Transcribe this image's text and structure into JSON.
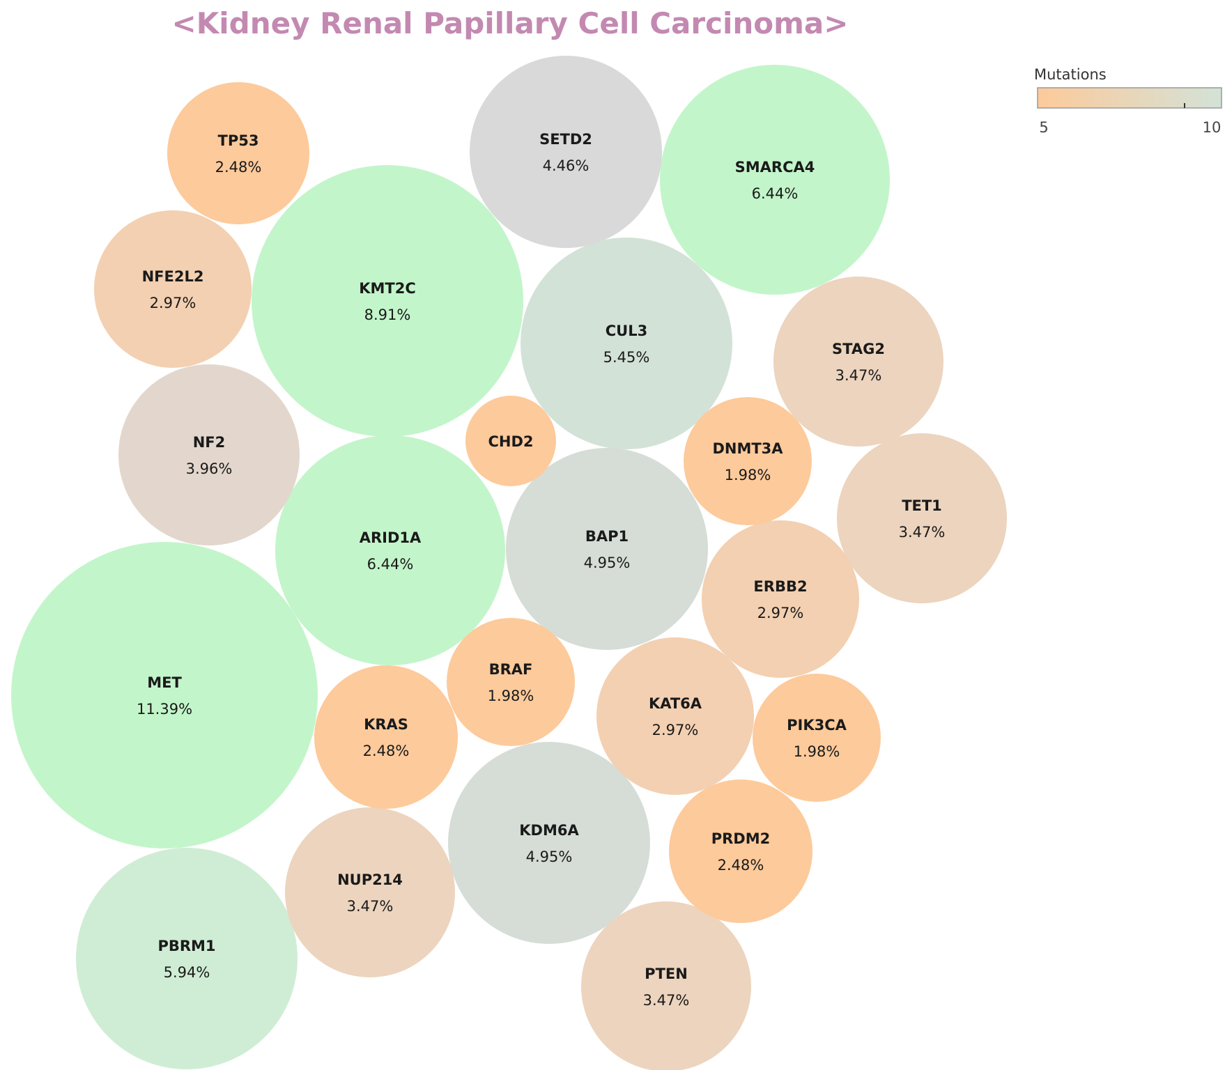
{
  "chart_data": {
    "type": "bubble",
    "title": "<Kidney Renal Papillary Cell Carcinoma>",
    "title_color": "#c389b1",
    "colorbar": {
      "title": "Mutations",
      "ticks": [
        "5",
        "10"
      ],
      "color_low": "#fdca9b",
      "color_high": "#d3e2d7",
      "color_out_of_range": "#c3f5ca"
    },
    "bubbles": [
      {
        "gene": "MET",
        "percent": 11.39,
        "label": "11.39%",
        "color": "#c3f5ca"
      },
      {
        "gene": "KMT2C",
        "percent": 8.91,
        "label": "8.91%",
        "color": "#c3f5ca"
      },
      {
        "gene": "SMARCA4",
        "percent": 6.44,
        "label": "6.44%",
        "color": "#c3f5ca"
      },
      {
        "gene": "ARID1A",
        "percent": 6.44,
        "label": "6.44%",
        "color": "#c3f5ca"
      },
      {
        "gene": "PBRM1",
        "percent": 5.94,
        "label": "5.94%",
        "color": "#cfedd4"
      },
      {
        "gene": "CUL3",
        "percent": 5.45,
        "label": "5.45%",
        "color": "#d3e2d7"
      },
      {
        "gene": "BAP1",
        "percent": 4.95,
        "label": "4.95%",
        "color": "#d5ddd6"
      },
      {
        "gene": "KDM6A",
        "percent": 4.95,
        "label": "4.95%",
        "color": "#d5ddd6"
      },
      {
        "gene": "SETD2",
        "percent": 4.46,
        "label": "4.46%",
        "color": "#d9d9d9"
      },
      {
        "gene": "NF2",
        "percent": 3.96,
        "label": "3.96%",
        "color": "#e3d7cd"
      },
      {
        "gene": "STAG2",
        "percent": 3.47,
        "label": "3.47%",
        "color": "#ecd4be"
      },
      {
        "gene": "TET1",
        "percent": 3.47,
        "label": "3.47%",
        "color": "#ecd4be"
      },
      {
        "gene": "NUP214",
        "percent": 3.47,
        "label": "3.47%",
        "color": "#ecd4be"
      },
      {
        "gene": "PTEN",
        "percent": 3.47,
        "label": "3.47%",
        "color": "#ecd4be"
      },
      {
        "gene": "NFE2L2",
        "percent": 2.97,
        "label": "2.97%",
        "color": "#f3d0b1"
      },
      {
        "gene": "ERBB2",
        "percent": 2.97,
        "label": "2.97%",
        "color": "#f3d0b1"
      },
      {
        "gene": "KAT6A",
        "percent": 2.97,
        "label": "2.97%",
        "color": "#f3d0b1"
      },
      {
        "gene": "TP53",
        "percent": 2.48,
        "label": "2.48%",
        "color": "#fdca9b"
      },
      {
        "gene": "KRAS",
        "percent": 2.48,
        "label": "2.48%",
        "color": "#fdca9b"
      },
      {
        "gene": "PRDM2",
        "percent": 2.48,
        "label": "2.48%",
        "color": "#fdca9b"
      },
      {
        "gene": "DNMT3A",
        "percent": 1.98,
        "label": "1.98%",
        "color": "#fdca9b"
      },
      {
        "gene": "BRAF",
        "percent": 1.98,
        "label": "1.98%",
        "color": "#fdca9b"
      },
      {
        "gene": "PIK3CA",
        "percent": 1.98,
        "label": "1.98%",
        "color": "#fdca9b"
      },
      {
        "gene": "CHD2",
        "percent": null,
        "label": "",
        "color": "#fdca9b"
      }
    ]
  }
}
